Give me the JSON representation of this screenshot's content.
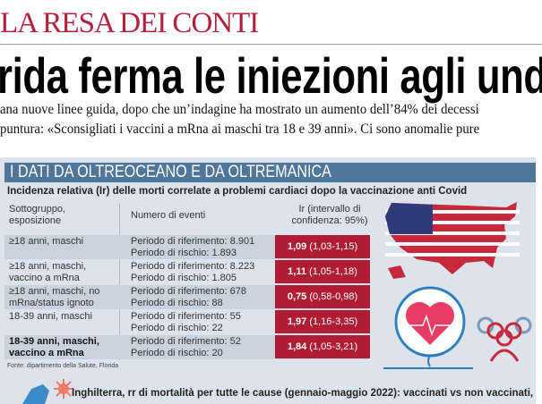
{
  "kicker": "LA RESA DEI CONTI",
  "headline": "rida ferma le iniezioni agli und",
  "subhead": [
    "ana nuove linee guida, dopo che un’indagine ha mostrato un aumento dell’84% dei decessi",
    "puntura: «Sconsigliati i vaccini a mRna ai maschi tra 18 e 39 anni». Ci sono anomalie pure"
  ],
  "infographic": {
    "title": "I DATI DA OLTREOCEANO E DA OLTREMANICA",
    "subtitle": "Incidenza relativa (Ir) delle morti correlate a problemi cardiaci dopo la vaccinazione anti Covid",
    "headers": [
      "Sottogruppo, esposizione",
      "Numero di eventi",
      "Ir (intervallo di confidenza: 95%)"
    ],
    "rows": [
      {
        "group": "≥18 anni, maschi",
        "ref": "Periodo di riferimento: 8.901",
        "risk": "Periodo di rischio: 1.893",
        "ir": "1,09",
        "ci": "(1,03-1,15)",
        "bold": false
      },
      {
        "group": "≥18 anni, maschi, vaccino a mRna",
        "ref": "Periodo di riferimento: 8.223",
        "risk": "Periodo di rischio: 1.805",
        "ir": "1,11",
        "ci": "(1,05-1,18)",
        "bold": false
      },
      {
        "group": "≥18 anni, maschi, no mRna/status ignoto",
        "ref": "Periodo di riferimento: 678",
        "risk": "Periodo di rischio: 88",
        "ir": "0,75",
        "ci": "(0,58-0,98)",
        "bold": false
      },
      {
        "group": "18-39 anni, maschi",
        "ref": "Periodo di riferimento: 55",
        "risk": "Periodo di rischio: 22",
        "ir": "1,97",
        "ci": "(1,16-3,35)",
        "bold": false
      },
      {
        "group": "18-39 anni, maschi, vaccino a mRna",
        "ref": "Periodo di riferimento: 52",
        "risk": "Periodo di rischio:  20",
        "ir": "1,84",
        "ci": "(1,05-3,21)",
        "bold": true
      }
    ],
    "source": "Fonte: dipartimento della Salute, Florida",
    "footer": "Inghilterra, rr di mortalità per tutte le cause (gennaio-maggio 2022): vaccinati vs non vaccinati,",
    "colors": {
      "title_bar": "#4f7799",
      "cell_red": "#b01c34",
      "kicker": "#b3203c",
      "panel": "#dde3ea"
    },
    "icons": [
      "us-flag-map-icon",
      "heart-monitor-icon",
      "people-group-icon",
      "england-map-icon",
      "virus-icon"
    ]
  }
}
